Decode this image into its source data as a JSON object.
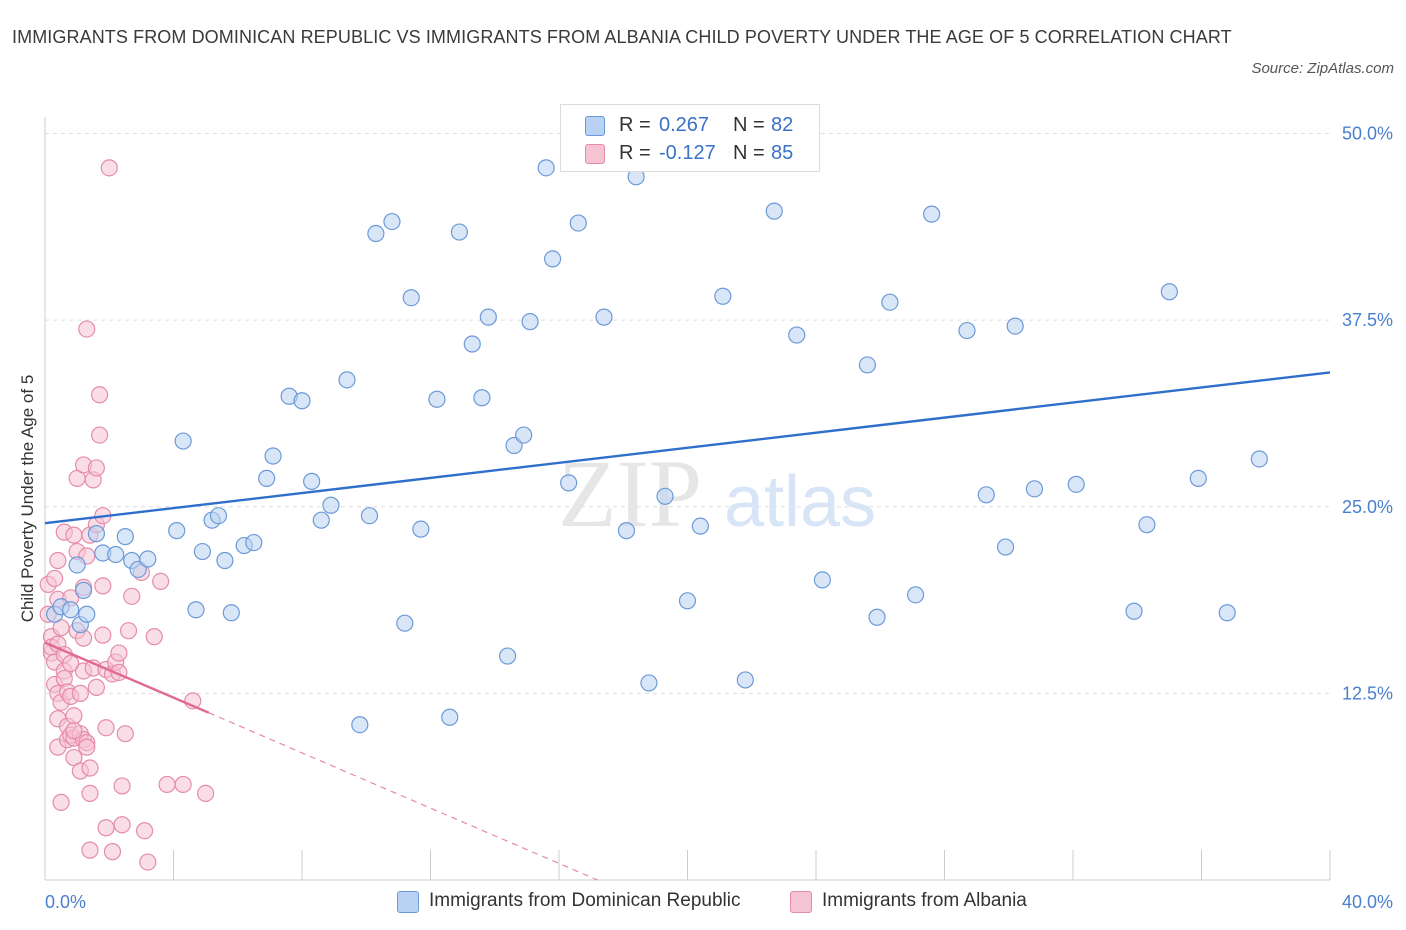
{
  "title": "IMMIGRANTS FROM DOMINICAN REPUBLIC VS IMMIGRANTS FROM ALBANIA CHILD POVERTY UNDER THE AGE OF 5 CORRELATION CHART",
  "source": "Source: ZipAtlas.com",
  "watermark": {
    "zip": "ZIP",
    "atlas": "atlas"
  },
  "colors": {
    "blue_fill": "#b9d2f3",
    "blue_stroke": "#6c9ad8",
    "blue_line": "#2f6fcc",
    "pink_fill": "#f6c3d3",
    "pink_stroke": "#e58ca8",
    "pink_line": "#e06a92",
    "grid": "#dddddd",
    "axis_text": "#4a7fcf"
  },
  "legend": {
    "series": [
      {
        "r_label": "R =",
        "r_value": "0.267",
        "n_label": "N =",
        "n_value": "82"
      },
      {
        "r_label": "R =",
        "r_value": "-0.127",
        "n_label": "N =",
        "n_value": "85"
      }
    ]
  },
  "bottom_legend": [
    {
      "label": "Immigrants from Dominican Republic"
    },
    {
      "label": "Immigrants from Albania"
    }
  ],
  "chart_data": {
    "type": "scatter",
    "title": "IMMIGRANTS FROM DOMINICAN REPUBLIC VS IMMIGRANTS FROM ALBANIA CHILD POVERTY UNDER THE AGE OF 5 CORRELATION CHART",
    "xlabel": "",
    "ylabel": "Child Poverty Under the Age of 5",
    "xlim": [
      0,
      40
    ],
    "ylim": [
      0,
      50
    ],
    "x_tick_labels": [
      "0.0%",
      "40.0%"
    ],
    "y_ticks": [
      12.5,
      25.0,
      37.5,
      50.0
    ],
    "y_tick_labels": [
      "12.5%",
      "25.0%",
      "37.5%",
      "50.0%"
    ],
    "grid": true,
    "legend_position": "top-center",
    "series": [
      {
        "name": "Immigrants from Dominican Republic",
        "color": "#6c9ad8",
        "trend": {
          "x": [
            0,
            40
          ],
          "y": [
            23.9,
            34.0
          ],
          "style": "solid"
        },
        "points": [
          [
            0.3,
            17.8
          ],
          [
            0.5,
            18.3
          ],
          [
            0.8,
            18.1
          ],
          [
            1.0,
            21.1
          ],
          [
            1.2,
            19.4
          ],
          [
            1.1,
            17.1
          ],
          [
            1.3,
            17.8
          ],
          [
            1.6,
            23.2
          ],
          [
            1.8,
            21.9
          ],
          [
            2.2,
            21.8
          ],
          [
            2.5,
            23.0
          ],
          [
            2.7,
            21.4
          ],
          [
            2.9,
            20.8
          ],
          [
            3.2,
            21.5
          ],
          [
            4.1,
            23.4
          ],
          [
            4.3,
            29.4
          ],
          [
            4.7,
            18.1
          ],
          [
            4.9,
            22.0
          ],
          [
            5.2,
            24.1
          ],
          [
            5.4,
            24.4
          ],
          [
            5.6,
            21.4
          ],
          [
            5.8,
            17.9
          ],
          [
            6.2,
            22.4
          ],
          [
            6.5,
            22.6
          ],
          [
            6.9,
            26.9
          ],
          [
            7.1,
            28.4
          ],
          [
            7.6,
            32.4
          ],
          [
            8.0,
            32.1
          ],
          [
            8.3,
            26.7
          ],
          [
            8.6,
            24.1
          ],
          [
            8.9,
            25.1
          ],
          [
            9.4,
            33.5
          ],
          [
            9.8,
            10.4
          ],
          [
            10.1,
            24.4
          ],
          [
            10.3,
            43.3
          ],
          [
            10.8,
            44.1
          ],
          [
            11.2,
            17.2
          ],
          [
            11.4,
            39.0
          ],
          [
            11.7,
            23.5
          ],
          [
            12.2,
            32.2
          ],
          [
            12.6,
            10.9
          ],
          [
            12.9,
            43.4
          ],
          [
            13.3,
            35.9
          ],
          [
            13.6,
            32.3
          ],
          [
            13.8,
            37.7
          ],
          [
            14.4,
            15.0
          ],
          [
            14.6,
            29.1
          ],
          [
            14.9,
            29.8
          ],
          [
            15.1,
            37.4
          ],
          [
            15.6,
            47.7
          ],
          [
            15.8,
            41.6
          ],
          [
            16.3,
            26.6
          ],
          [
            16.6,
            44.0
          ],
          [
            17.4,
            37.7
          ],
          [
            18.1,
            23.4
          ],
          [
            18.4,
            47.1
          ],
          [
            18.8,
            13.2
          ],
          [
            19.3,
            25.7
          ],
          [
            20.0,
            18.7
          ],
          [
            20.4,
            23.7
          ],
          [
            21.1,
            39.1
          ],
          [
            21.8,
            13.4
          ],
          [
            22.7,
            44.8
          ],
          [
            23.4,
            36.5
          ],
          [
            24.2,
            20.1
          ],
          [
            25.6,
            34.5
          ],
          [
            25.9,
            17.6
          ],
          [
            26.3,
            38.7
          ],
          [
            27.1,
            19.1
          ],
          [
            27.6,
            44.6
          ],
          [
            28.7,
            36.8
          ],
          [
            29.3,
            25.8
          ],
          [
            29.9,
            22.3
          ],
          [
            30.2,
            37.1
          ],
          [
            30.8,
            26.2
          ],
          [
            32.1,
            26.5
          ],
          [
            33.9,
            18.0
          ],
          [
            34.3,
            23.8
          ],
          [
            35.0,
            39.4
          ],
          [
            35.9,
            26.9
          ],
          [
            36.8,
            17.9
          ],
          [
            37.8,
            28.2
          ]
        ]
      },
      {
        "name": "Immigrants from Albania",
        "color": "#e58ca8",
        "trend": {
          "x": [
            0,
            5.1
          ],
          "y": [
            15.9,
            11.2
          ],
          "style": "solid",
          "extended_to": [
            17.2,
            0
          ],
          "extended_style": "dashed"
        },
        "points": [
          [
            0.1,
            19.8
          ],
          [
            0.1,
            17.8
          ],
          [
            0.2,
            16.3
          ],
          [
            0.2,
            15.2
          ],
          [
            0.2,
            15.6
          ],
          [
            0.3,
            20.2
          ],
          [
            0.3,
            13.1
          ],
          [
            0.3,
            14.6
          ],
          [
            0.4,
            21.4
          ],
          [
            0.4,
            18.8
          ],
          [
            0.4,
            15.8
          ],
          [
            0.4,
            12.5
          ],
          [
            0.4,
            10.8
          ],
          [
            0.4,
            8.9
          ],
          [
            0.5,
            5.2
          ],
          [
            0.5,
            16.9
          ],
          [
            0.5,
            11.9
          ],
          [
            0.6,
            23.3
          ],
          [
            0.6,
            15.1
          ],
          [
            0.6,
            14.0
          ],
          [
            0.6,
            13.5
          ],
          [
            0.7,
            12.6
          ],
          [
            0.7,
            10.3
          ],
          [
            0.7,
            9.4
          ],
          [
            0.8,
            18.9
          ],
          [
            0.8,
            14.5
          ],
          [
            0.8,
            12.3
          ],
          [
            0.8,
            9.7
          ],
          [
            0.9,
            23.1
          ],
          [
            0.9,
            8.2
          ],
          [
            0.9,
            9.5
          ],
          [
            0.9,
            11.0
          ],
          [
            1.0,
            16.7
          ],
          [
            1.0,
            22.0
          ],
          [
            1.0,
            26.9
          ],
          [
            1.1,
            7.3
          ],
          [
            1.1,
            9.8
          ],
          [
            1.1,
            12.5
          ],
          [
            1.2,
            19.6
          ],
          [
            1.2,
            27.8
          ],
          [
            1.2,
            14.0
          ],
          [
            1.2,
            9.4
          ],
          [
            1.3,
            36.9
          ],
          [
            1.3,
            21.7
          ],
          [
            1.3,
            9.2
          ],
          [
            1.3,
            8.9
          ],
          [
            1.4,
            23.1
          ],
          [
            1.4,
            2.0
          ],
          [
            1.4,
            7.5
          ],
          [
            1.4,
            5.8
          ],
          [
            1.5,
            14.2
          ],
          [
            1.5,
            26.8
          ],
          [
            1.6,
            27.6
          ],
          [
            1.6,
            23.8
          ],
          [
            1.6,
            12.9
          ],
          [
            1.7,
            32.5
          ],
          [
            1.7,
            29.8
          ],
          [
            1.8,
            24.4
          ],
          [
            1.8,
            19.7
          ],
          [
            1.8,
            16.4
          ],
          [
            1.9,
            3.5
          ],
          [
            1.9,
            10.2
          ],
          [
            1.9,
            14.1
          ],
          [
            2.0,
            47.7
          ],
          [
            2.1,
            1.9
          ],
          [
            2.1,
            13.8
          ],
          [
            2.2,
            14.6
          ],
          [
            2.3,
            13.9
          ],
          [
            2.3,
            15.2
          ],
          [
            2.4,
            3.7
          ],
          [
            2.4,
            6.3
          ],
          [
            2.5,
            9.8
          ],
          [
            2.6,
            16.7
          ],
          [
            2.7,
            19.0
          ],
          [
            3.0,
            20.6
          ],
          [
            3.1,
            3.3
          ],
          [
            3.2,
            1.2
          ],
          [
            3.4,
            16.3
          ],
          [
            3.6,
            20.0
          ],
          [
            3.8,
            6.4
          ],
          [
            4.3,
            6.4
          ],
          [
            4.6,
            12.0
          ],
          [
            5.0,
            5.8
          ],
          [
            0.9,
            10.0
          ],
          [
            1.2,
            16.2
          ]
        ]
      }
    ]
  }
}
